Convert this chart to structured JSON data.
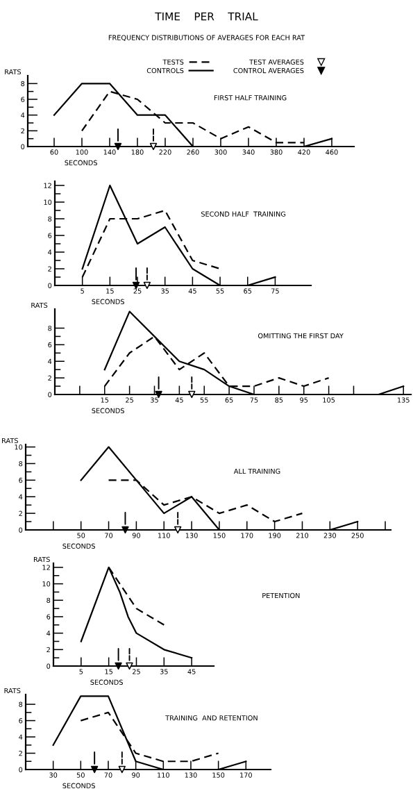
{
  "chart_data": [
    {
      "type": "line",
      "title": "TIME    PER    TRIAL",
      "subtitle": "FREQUENCY DISTRIBUTIONS OF AVERAGES FOR EACH RAT",
      "annotations": [
        "FIRST HALF TRAINING"
      ],
      "ylabel": "RATS",
      "xlabel": "SECONDS",
      "legend": "top",
      "grid": false,
      "xlim": [
        22,
        492
      ],
      "xticks": [
        60,
        100,
        140,
        180,
        220,
        260,
        300,
        340,
        380,
        420,
        460
      ],
      "ylim": [
        0,
        9
      ],
      "yticks": [
        0,
        {
          "value": 1,
          "label": null
        },
        2,
        {
          "value": 3,
          "label": null
        },
        4,
        {
          "value": 5,
          "label": null
        },
        6,
        {
          "value": 7,
          "label": null
        },
        8
      ],
      "series": [
        {
          "name": "TESTS",
          "color": "#000000",
          "line_style": "dashed",
          "x": [
            100,
            140,
            180,
            220,
            260,
            300,
            340,
            380,
            420
          ],
          "values": [
            2,
            7,
            6,
            3,
            3,
            1,
            2.5,
            0.5,
            0.5
          ]
        },
        {
          "name": "TEST AVERAGES",
          "type": "scatter",
          "marker": "triangle",
          "line_style": "dashed",
          "color": "#000000",
          "x": [
            203
          ],
          "values": [
            0
          ]
        },
        {
          "name": "CONTROLS",
          "color": "#000000",
          "line_style": "solid",
          "x": [
            60,
            100,
            140,
            180,
            220,
            260,
            300,
            340,
            380,
            420,
            460
          ],
          "values": [
            4,
            8,
            8,
            4,
            4,
            0,
            0,
            0,
            0,
            0,
            1
          ]
        },
        {
          "name": "CONTROL AVERAGES",
          "type": "scatter",
          "marker": "triangle",
          "line_style": "solid",
          "color": "#000000",
          "x": [
            152
          ],
          "values": [
            0
          ]
        }
      ]
    },
    {
      "type": "line",
      "annotations": [
        "SECOND HALF  TRAINING"
      ],
      "xlabel": "SECONDS",
      "grid": false,
      "xlim": [
        -5,
        88
      ],
      "xticks": [
        5,
        15,
        25,
        35,
        45,
        55,
        65,
        75
      ],
      "ylim": [
        0,
        12.5
      ],
      "yticks": [
        0,
        {
          "value": 1,
          "label": null
        },
        2,
        {
          "value": 3,
          "label": null
        },
        4,
        {
          "value": 5,
          "label": null
        },
        6,
        {
          "value": 7,
          "label": null
        },
        8,
        {
          "value": 9,
          "label": null
        },
        10,
        {
          "value": 11,
          "label": null
        },
        12
      ],
      "series": [
        {
          "color": "#000000",
          "line_style": "dashed",
          "x": [
            5,
            15,
            25,
            35,
            45,
            55
          ],
          "values": [
            1,
            8,
            8,
            9,
            3,
            2
          ]
        },
        {
          "type": "scatter",
          "marker": "triangle",
          "line_style": "dashed",
          "color": "#000000",
          "x": [
            28.5
          ],
          "values": [
            0
          ]
        },
        {
          "color": "#000000",
          "line_style": "solid",
          "x": [
            5,
            15,
            25,
            35,
            45,
            55,
            60,
            65,
            75
          ],
          "values": [
            2,
            12,
            5,
            7,
            2,
            0,
            null,
            0,
            1
          ]
        },
        {
          "type": "scatter",
          "marker": "triangle",
          "line_style": "solid",
          "color": "#000000",
          "x": [
            24.5
          ],
          "values": [
            0
          ]
        }
      ]
    },
    {
      "type": "line",
      "annotations": [
        "OMITTING THE FIRST DAY"
      ],
      "ylabel": "RATS",
      "xlabel": "SECONDS",
      "grid": false,
      "xlim": [
        -5,
        138
      ],
      "xticks": [
        {
          "value": 5,
          "label": null
        },
        15,
        25,
        35,
        45,
        55,
        65,
        75,
        85,
        95,
        105,
        {
          "value": 115,
          "label": null
        },
        135
      ],
      "ylim": [
        0,
        10.3
      ],
      "yticks": [
        0,
        {
          "value": 1,
          "label": null
        },
        2,
        {
          "value": 3,
          "label": null
        },
        4,
        {
          "value": 5,
          "label": null
        },
        6,
        {
          "value": 7,
          "label": null
        },
        8
      ],
      "series": [
        {
          "color": "#000000",
          "line_style": "dashed",
          "x": [
            15,
            25,
            35,
            45,
            55,
            65,
            75,
            85,
            95,
            105
          ],
          "values": [
            1,
            5,
            7,
            3,
            5,
            1,
            1,
            2,
            1,
            2
          ]
        },
        {
          "type": "scatter",
          "marker": "triangle",
          "line_style": "dashed",
          "color": "#000000",
          "x": [
            50
          ],
          "values": [
            0
          ]
        },
        {
          "color": "#000000",
          "line_style": "solid",
          "x": [
            15,
            25,
            35,
            45,
            55,
            65,
            75,
            85,
            95,
            105,
            115,
            125,
            135
          ],
          "values": [
            3,
            10,
            7,
            4,
            3,
            1,
            0,
            0,
            0,
            0,
            0,
            0,
            1
          ]
        },
        {
          "type": "scatter",
          "marker": "triangle",
          "line_style": "solid",
          "color": "#000000",
          "x": [
            36.7
          ],
          "values": [
            0
          ]
        }
      ]
    },
    {
      "type": "line",
      "annotations": [
        "ALL TRAINING"
      ],
      "ylabel": "RATS",
      "xlabel": "SECONDS",
      "grid": false,
      "xlim": [
        10,
        274
      ],
      "xticks": [
        {
          "value": 30,
          "label": null
        },
        50,
        70,
        90,
        110,
        130,
        150,
        170,
        190,
        210,
        230,
        250,
        {
          "value": 270,
          "label": null
        }
      ],
      "ylim": [
        0,
        10.3
      ],
      "yticks": [
        0,
        {
          "value": 1,
          "label": null
        },
        2,
        {
          "value": 3,
          "label": null
        },
        4,
        {
          "value": 5,
          "label": null
        },
        6,
        {
          "value": 7,
          "label": null
        },
        8,
        {
          "value": 9,
          "label": null
        },
        10
      ],
      "series": [
        {
          "color": "#000000",
          "line_style": "dashed",
          "x": [
            70,
            90,
            110,
            130,
            150,
            170,
            190,
            210
          ],
          "values": [
            6,
            6,
            3,
            4,
            2,
            3,
            1,
            2
          ]
        },
        {
          "type": "scatter",
          "marker": "triangle",
          "line_style": "dashed",
          "color": "#000000",
          "x": [
            120
          ],
          "values": [
            0
          ]
        },
        {
          "color": "#000000",
          "line_style": "solid",
          "x": [
            50,
            70,
            90,
            110,
            130,
            150,
            170,
            190,
            210,
            230,
            250
          ],
          "values": [
            6,
            10,
            6,
            2,
            4,
            0,
            0,
            0,
            0,
            0,
            1
          ]
        },
        {
          "type": "scatter",
          "marker": "triangle",
          "line_style": "solid",
          "color": "#000000",
          "x": [
            82
          ],
          "values": [
            0
          ]
        }
      ]
    },
    {
      "type": "line",
      "annotations": [
        "PETENTION"
      ],
      "ylabel": "RATS",
      "xlabel": "SECONDS",
      "grid": false,
      "xlim": [
        -5,
        53
      ],
      "xticks": [
        5,
        15,
        25,
        35,
        45
      ],
      "ylim": [
        0,
        12.5
      ],
      "yticks": [
        0,
        {
          "value": 1,
          "label": null
        },
        2,
        {
          "value": 3,
          "label": null
        },
        4,
        {
          "value": 5,
          "label": null
        },
        6,
        {
          "value": 7,
          "label": null
        },
        8,
        {
          "value": 9,
          "label": null
        },
        10,
        {
          "value": 11,
          "label": null
        },
        12
      ],
      "series": [
        {
          "color": "#000000",
          "line_style": "dashed",
          "x": [
            15,
            25,
            35
          ],
          "values": [
            12,
            7,
            5
          ]
        },
        {
          "type": "scatter",
          "marker": "triangle",
          "line_style": "dashed",
          "color": "#000000",
          "x": [
            22.5
          ],
          "values": [
            0
          ]
        },
        {
          "color": "#000000",
          "line_style": "solid",
          "x": [
            5,
            15,
            19,
            22,
            25,
            35,
            45
          ],
          "values": [
            3,
            12,
            9,
            6,
            4,
            2,
            1
          ]
        },
        {
          "type": "scatter",
          "marker": "triangle",
          "line_style": "solid",
          "color": "#000000",
          "x": [
            18.5
          ],
          "values": [
            0
          ]
        }
      ]
    },
    {
      "type": "line",
      "annotations": [
        "TRAINING  AND RETENTION"
      ],
      "ylabel": "RATS",
      "xlabel": "SECONDS",
      "grid": false,
      "xlim": [
        10,
        188
      ],
      "xticks": [
        30,
        50,
        70,
        90,
        110,
        130,
        150,
        170
      ],
      "ylim": [
        0,
        9.2
      ],
      "yticks": [
        0,
        {
          "value": 1,
          "label": null
        },
        2,
        {
          "value": 3,
          "label": null
        },
        4,
        {
          "value": 5,
          "label": null
        },
        6,
        {
          "value": 7,
          "label": null
        },
        8
      ],
      "series": [
        {
          "color": "#000000",
          "line_style": "dashed",
          "x": [
            50,
            70,
            90,
            110,
            130,
            150
          ],
          "values": [
            6,
            7,
            2,
            1,
            1,
            2
          ]
        },
        {
          "type": "scatter",
          "marker": "triangle",
          "line_style": "dashed",
          "color": "#000000",
          "x": [
            80
          ],
          "values": [
            0
          ]
        },
        {
          "color": "#000000",
          "line_style": "solid",
          "x": [
            30,
            50,
            70,
            90,
            110,
            130,
            150,
            170
          ],
          "values": [
            3,
            9,
            9,
            1,
            0,
            0,
            0,
            1
          ]
        },
        {
          "type": "scatter",
          "marker": "triangle",
          "line_style": "solid",
          "color": "#000000",
          "x": [
            60
          ],
          "values": [
            0
          ]
        }
      ]
    }
  ]
}
